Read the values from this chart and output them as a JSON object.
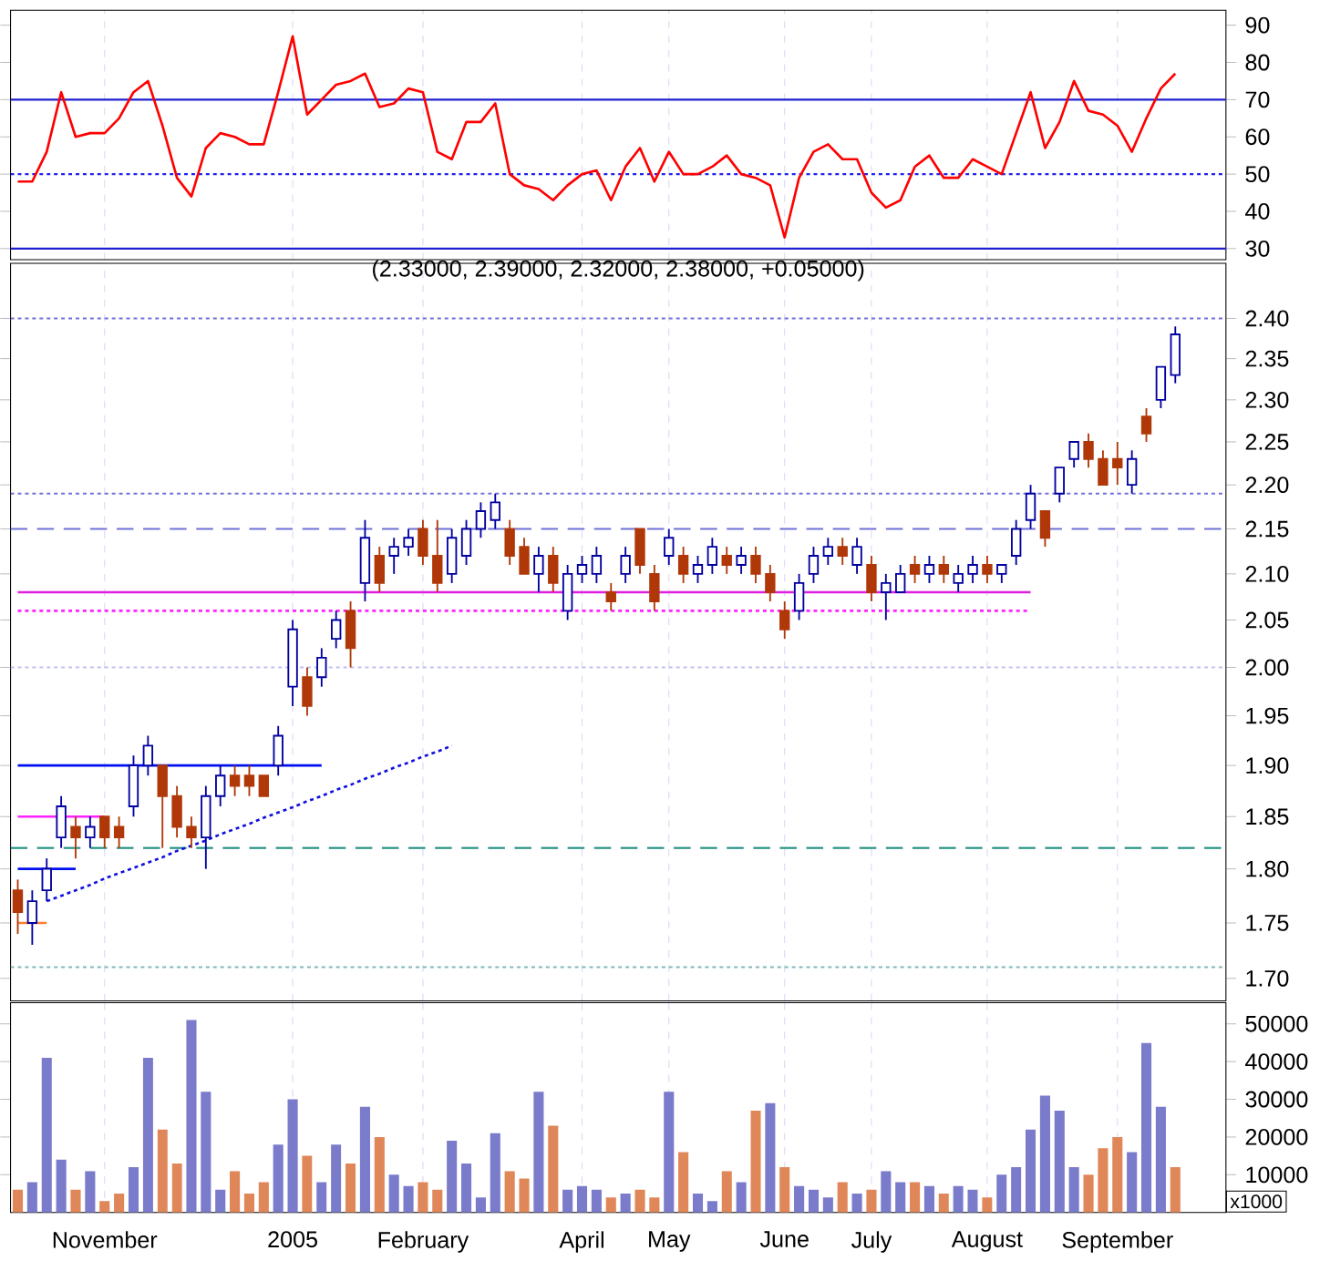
{
  "chart_data": [
    {
      "type": "line",
      "categories": [
        null,
        null,
        null,
        null,
        null,
        null,
        null,
        null,
        null,
        null,
        null,
        null,
        null,
        null,
        null,
        null,
        null,
        null,
        null,
        null,
        null,
        null,
        null,
        null,
        null,
        null,
        null,
        null,
        null,
        null,
        null,
        null,
        null,
        null,
        null,
        null,
        null,
        null,
        null,
        null,
        null,
        null,
        null,
        null,
        null,
        null,
        null,
        null,
        null,
        null,
        null,
        null,
        null,
        null,
        null,
        null,
        null,
        null,
        null,
        null,
        null,
        null,
        null,
        null,
        null,
        null,
        null,
        null,
        null,
        null,
        null,
        null,
        null,
        null,
        null,
        null,
        null,
        null,
        null,
        null,
        null
      ],
      "series": [
        {
          "color": "#ff0000",
          "values": [
            48,
            48,
            56,
            72,
            60,
            61,
            61,
            65,
            72,
            75,
            63,
            49,
            44,
            57,
            61,
            60,
            58,
            58,
            72,
            87,
            66,
            70,
            74,
            75,
            77,
            68,
            69,
            73,
            72,
            56,
            54,
            64,
            64,
            69,
            50,
            47,
            46,
            43,
            47,
            50,
            51,
            43,
            52,
            57,
            48,
            56,
            50,
            50,
            52,
            55,
            50,
            49,
            47,
            33,
            49,
            56,
            58,
            54,
            54,
            45,
            41,
            43,
            52,
            55,
            49,
            49,
            54,
            52,
            50,
            61,
            72,
            57,
            64,
            75,
            67,
            66,
            63,
            56,
            65,
            73,
            77
          ]
        }
      ],
      "ylim": [
        27,
        94
      ],
      "yticks": [
        30,
        40,
        50,
        60,
        70,
        80,
        90
      ],
      "grid": "x",
      "tick_labels": "y",
      "ref_lines": [
        {
          "axis": "y",
          "value": 70,
          "color": "#2020d0",
          "line_style": "solid"
        },
        {
          "axis": "y",
          "value": 50,
          "color": "#2020f0",
          "line_style": "dotted"
        },
        {
          "axis": "y",
          "value": 30,
          "color": "#2020d0",
          "line_style": "solid"
        }
      ]
    },
    {
      "type": "candlestick",
      "title": "(2.33000, 2.39000, 2.32000, 2.38000, +0.05000)",
      "categories": [
        null,
        null,
        null,
        null,
        null,
        null,
        null,
        null,
        null,
        null,
        null,
        null,
        null,
        null,
        null,
        null,
        null,
        null,
        null,
        null,
        null,
        null,
        null,
        null,
        null,
        null,
        null,
        null,
        null,
        null,
        null,
        null,
        null,
        null,
        null,
        null,
        null,
        null,
        null,
        null,
        null,
        null,
        null,
        null,
        null,
        null,
        null,
        null,
        null,
        null,
        null,
        null,
        null,
        null,
        null,
        null,
        null,
        null,
        null,
        null,
        null,
        null,
        null,
        null,
        null,
        null,
        null,
        null,
        null,
        null,
        null,
        null,
        null,
        null,
        null,
        null,
        null,
        null,
        null,
        null,
        null
      ],
      "ohlc": [
        [
          1.78,
          1.79,
          1.74,
          1.76
        ],
        [
          1.75,
          1.78,
          1.73,
          1.77
        ],
        [
          1.78,
          1.81,
          1.77,
          1.8
        ],
        [
          1.83,
          1.87,
          1.82,
          1.86
        ],
        [
          1.84,
          1.85,
          1.81,
          1.83
        ],
        [
          1.83,
          1.85,
          1.82,
          1.84
        ],
        [
          1.85,
          1.85,
          1.82,
          1.83
        ],
        [
          1.84,
          1.85,
          1.82,
          1.83
        ],
        [
          1.86,
          1.91,
          1.85,
          1.9
        ],
        [
          1.9,
          1.93,
          1.89,
          1.92
        ],
        [
          1.9,
          1.9,
          1.82,
          1.87
        ],
        [
          1.87,
          1.88,
          1.83,
          1.84
        ],
        [
          1.84,
          1.85,
          1.82,
          1.83
        ],
        [
          1.83,
          1.88,
          1.8,
          1.87
        ],
        [
          1.87,
          1.9,
          1.86,
          1.89
        ],
        [
          1.89,
          1.9,
          1.87,
          1.88
        ],
        [
          1.89,
          1.9,
          1.87,
          1.88
        ],
        [
          1.89,
          1.89,
          1.87,
          1.87
        ],
        [
          1.9,
          1.94,
          1.89,
          1.93
        ],
        [
          1.98,
          2.05,
          1.96,
          2.04
        ],
        [
          1.99,
          2.0,
          1.95,
          1.96
        ],
        [
          1.99,
          2.02,
          1.98,
          2.01
        ],
        [
          2.03,
          2.06,
          2.02,
          2.05
        ],
        [
          2.06,
          2.07,
          2.0,
          2.02
        ],
        [
          2.09,
          2.16,
          2.07,
          2.14
        ],
        [
          2.12,
          2.13,
          2.08,
          2.09
        ],
        [
          2.12,
          2.14,
          2.1,
          2.13
        ],
        [
          2.13,
          2.15,
          2.12,
          2.14
        ],
        [
          2.15,
          2.16,
          2.11,
          2.12
        ],
        [
          2.12,
          2.16,
          2.08,
          2.09
        ],
        [
          2.1,
          2.15,
          2.09,
          2.14
        ],
        [
          2.12,
          2.16,
          2.11,
          2.15
        ],
        [
          2.15,
          2.18,
          2.14,
          2.17
        ],
        [
          2.16,
          2.19,
          2.15,
          2.18
        ],
        [
          2.15,
          2.16,
          2.11,
          2.12
        ],
        [
          2.13,
          2.14,
          2.1,
          2.1
        ],
        [
          2.1,
          2.13,
          2.08,
          2.12
        ],
        [
          2.12,
          2.13,
          2.08,
          2.09
        ],
        [
          2.06,
          2.11,
          2.05,
          2.1
        ],
        [
          2.1,
          2.12,
          2.09,
          2.11
        ],
        [
          2.1,
          2.13,
          2.09,
          2.12
        ],
        [
          2.08,
          2.09,
          2.06,
          2.07
        ],
        [
          2.1,
          2.13,
          2.09,
          2.12
        ],
        [
          2.15,
          2.15,
          2.1,
          2.11
        ],
        [
          2.1,
          2.11,
          2.06,
          2.07
        ],
        [
          2.12,
          2.15,
          2.11,
          2.14
        ],
        [
          2.12,
          2.13,
          2.09,
          2.1
        ],
        [
          2.1,
          2.12,
          2.09,
          2.11
        ],
        [
          2.11,
          2.14,
          2.1,
          2.13
        ],
        [
          2.12,
          2.13,
          2.1,
          2.11
        ],
        [
          2.11,
          2.13,
          2.1,
          2.12
        ],
        [
          2.12,
          2.13,
          2.09,
          2.1
        ],
        [
          2.1,
          2.11,
          2.07,
          2.08
        ],
        [
          2.06,
          2.07,
          2.03,
          2.04
        ],
        [
          2.06,
          2.1,
          2.05,
          2.09
        ],
        [
          2.1,
          2.13,
          2.09,
          2.12
        ],
        [
          2.12,
          2.14,
          2.11,
          2.13
        ],
        [
          2.13,
          2.14,
          2.11,
          2.12
        ],
        [
          2.11,
          2.14,
          2.1,
          2.13
        ],
        [
          2.11,
          2.12,
          2.07,
          2.08
        ],
        [
          2.08,
          2.1,
          2.05,
          2.09
        ],
        [
          2.08,
          2.11,
          2.08,
          2.1
        ],
        [
          2.11,
          2.12,
          2.09,
          2.1
        ],
        [
          2.1,
          2.12,
          2.09,
          2.11
        ],
        [
          2.11,
          2.12,
          2.09,
          2.1
        ],
        [
          2.09,
          2.11,
          2.08,
          2.1
        ],
        [
          2.1,
          2.12,
          2.09,
          2.11
        ],
        [
          2.11,
          2.12,
          2.09,
          2.1
        ],
        [
          2.1,
          2.11,
          2.09,
          2.11
        ],
        [
          2.12,
          2.16,
          2.11,
          2.15
        ],
        [
          2.16,
          2.2,
          2.15,
          2.19
        ],
        [
          2.17,
          2.17,
          2.13,
          2.14
        ],
        [
          2.19,
          2.22,
          2.18,
          2.22
        ],
        [
          2.23,
          2.25,
          2.22,
          2.25
        ],
        [
          2.25,
          2.26,
          2.22,
          2.23
        ],
        [
          2.23,
          2.24,
          2.2,
          2.2
        ],
        [
          2.23,
          2.25,
          2.2,
          2.22
        ],
        [
          2.2,
          2.24,
          2.19,
          2.23
        ],
        [
          2.28,
          2.29,
          2.25,
          2.26
        ],
        [
          2.3,
          2.34,
          2.29,
          2.34
        ],
        [
          2.33,
          2.39,
          2.32,
          2.38
        ]
      ],
      "series": [
        {
          "type": "line",
          "values": [
            2.08,
            2.08,
            2.08,
            2.08,
            2.08,
            2.08,
            2.08,
            2.08,
            2.08,
            2.08,
            2.08,
            2.08,
            2.08,
            2.08,
            2.08,
            2.08,
            2.08,
            2.08,
            2.08,
            2.08,
            2.08,
            2.08,
            2.08,
            2.08,
            2.08,
            2.08,
            2.08,
            2.08,
            2.08,
            2.08,
            2.08,
            2.08,
            2.08,
            2.08,
            2.08,
            2.08,
            2.08,
            2.08,
            2.08,
            2.08,
            2.08,
            2.08,
            2.08,
            2.08,
            2.08,
            2.08,
            2.08,
            2.08,
            2.08,
            2.08,
            2.08,
            2.08,
            2.08,
            2.08,
            2.08,
            2.08,
            2.08,
            2.08,
            2.08,
            2.08,
            2.08,
            2.08,
            2.08,
            2.08,
            2.08,
            2.08,
            2.08,
            2.08,
            2.08,
            2.08,
            2.08,
            null,
            null,
            null,
            null,
            null,
            null,
            null,
            null,
            null,
            null
          ],
          "color": "#e020e0",
          "line_style": "solid"
        },
        {
          "type": "line",
          "values": [
            2.06,
            2.06,
            2.06,
            2.06,
            2.06,
            2.06,
            2.06,
            2.06,
            2.06,
            2.06,
            2.06,
            2.06,
            2.06,
            2.06,
            2.06,
            2.06,
            2.06,
            2.06,
            2.06,
            2.06,
            2.06,
            2.06,
            2.06,
            2.06,
            2.06,
            2.06,
            2.06,
            2.06,
            2.06,
            2.06,
            2.06,
            2.06,
            2.06,
            2.06,
            2.06,
            2.06,
            2.06,
            2.06,
            2.06,
            2.06,
            2.06,
            2.06,
            2.06,
            2.06,
            2.06,
            2.06,
            2.06,
            2.06,
            2.06,
            2.06,
            2.06,
            2.06,
            2.06,
            2.06,
            2.06,
            2.06,
            2.06,
            2.06,
            2.06,
            2.06,
            2.06,
            2.06,
            2.06,
            2.06,
            2.06,
            2.06,
            2.06,
            2.06,
            2.06,
            2.06,
            2.06,
            null,
            null,
            null,
            null,
            null,
            null,
            null,
            null,
            null,
            null
          ],
          "color": "#ff20ff",
          "line_style": "dotted"
        },
        {
          "type": "line",
          "values": [
            1.9,
            1.9,
            1.9,
            1.9,
            1.9,
            1.9,
            1.9,
            1.9,
            1.9,
            1.9,
            1.9,
            1.9,
            1.9,
            1.9,
            1.9,
            1.9,
            1.9,
            1.9,
            1.9,
            1.9,
            1.9,
            1.9,
            null,
            null,
            null,
            null,
            null,
            null,
            null,
            null,
            null,
            null,
            null,
            null,
            null,
            null,
            null,
            null,
            null,
            null,
            null,
            null,
            null,
            null,
            null,
            null,
            null,
            null,
            null,
            null,
            null,
            null,
            null,
            null,
            null,
            null,
            null,
            null,
            null,
            null,
            null,
            null,
            null,
            null,
            null,
            null,
            null,
            null,
            null,
            null,
            null,
            null,
            null,
            null,
            null,
            null,
            null,
            null,
            null,
            null,
            null
          ],
          "color": "#0010f0",
          "line_style": "solid"
        },
        {
          "type": "line",
          "values": [
            1.85,
            1.85,
            1.85,
            1.85,
            1.85,
            1.85,
            1.85,
            null,
            null,
            null,
            null,
            null,
            null,
            null,
            null,
            null,
            null,
            null,
            null,
            null,
            null,
            null,
            null,
            null,
            null,
            null,
            null,
            null,
            null,
            null,
            null,
            null,
            null,
            null,
            null,
            null,
            null,
            null,
            null,
            null,
            null,
            null,
            null,
            null,
            null,
            null,
            null,
            null,
            null,
            null,
            null,
            null,
            null,
            null,
            null,
            null,
            null,
            null,
            null,
            null,
            null,
            null,
            null,
            null,
            null,
            null,
            null,
            null,
            null,
            null,
            null,
            null,
            null,
            null,
            null,
            null,
            null,
            null,
            null,
            null,
            null
          ],
          "color": "#ff20ff",
          "line_style": "solid"
        },
        {
          "type": "line",
          "values": [
            1.8,
            1.8,
            1.8,
            1.8,
            1.8,
            null,
            null,
            null,
            null,
            null,
            null,
            null,
            null,
            null,
            null,
            null,
            null,
            null,
            null,
            null,
            null,
            null,
            null,
            null,
            null,
            null,
            null,
            null,
            null,
            null,
            null,
            null,
            null,
            null,
            null,
            null,
            null,
            null,
            null,
            null,
            null,
            null,
            null,
            null,
            null,
            null,
            null,
            null,
            null,
            null,
            null,
            null,
            null,
            null,
            null,
            null,
            null,
            null,
            null,
            null,
            null,
            null,
            null,
            null,
            null,
            null,
            null,
            null,
            null,
            null,
            null,
            null,
            null,
            null,
            null,
            null,
            null,
            null,
            null,
            null,
            null
          ],
          "color": "#0010f0",
          "line_style": "solid"
        },
        {
          "type": "line",
          "values": [
            1.75,
            1.75,
            1.75,
            null,
            null,
            null,
            null,
            null,
            null,
            null,
            null,
            null,
            null,
            null,
            null,
            null,
            null,
            null,
            null,
            null,
            null,
            null,
            null,
            null,
            null,
            null,
            null,
            null,
            null,
            null,
            null,
            null,
            null,
            null,
            null,
            null,
            null,
            null,
            null,
            null,
            null,
            null,
            null,
            null,
            null,
            null,
            null,
            null,
            null,
            null,
            null,
            null,
            null,
            null,
            null,
            null,
            null,
            null,
            null,
            null,
            null,
            null,
            null,
            null,
            null,
            null,
            null,
            null,
            null,
            null,
            null,
            null,
            null,
            null,
            null,
            null,
            null,
            null,
            null,
            null,
            null
          ],
          "color": "#ff8030",
          "line_style": "solid"
        },
        {
          "type": "line",
          "values": [
            null,
            null,
            1.77,
            1.775,
            1.78,
            1.785,
            1.791,
            1.796,
            1.801,
            1.806,
            1.811,
            1.817,
            1.822,
            1.827,
            1.833,
            1.838,
            1.843,
            1.849,
            1.854,
            1.859,
            1.865,
            1.87,
            1.876,
            1.881,
            1.887,
            1.892,
            1.898,
            1.903,
            1.909,
            1.914,
            1.92,
            null,
            null,
            null,
            null,
            null,
            null,
            null,
            null,
            null,
            null,
            null,
            null,
            null,
            null,
            null,
            null,
            null,
            null,
            null,
            null,
            null,
            null,
            null,
            null,
            null,
            null,
            null,
            null,
            null,
            null,
            null,
            null,
            null,
            null,
            null,
            null,
            null,
            null,
            null,
            null,
            null,
            null,
            null,
            null,
            null,
            null,
            null,
            null,
            null,
            null
          ],
          "color": "#1010e0",
          "line_style": "dotted"
        }
      ],
      "log": "y",
      "ylim": [
        1.68,
        2.47
      ],
      "yticks": [
        {
          "value": 1.7,
          "label": "1.70"
        },
        {
          "value": 1.75,
          "label": "1.75"
        },
        {
          "value": 1.8,
          "label": "1.80"
        },
        {
          "value": 1.85,
          "label": "1.85"
        },
        {
          "value": 1.9,
          "label": "1.90"
        },
        {
          "value": 1.95,
          "label": "1.95"
        },
        {
          "value": 2.0,
          "label": "2.00"
        },
        {
          "value": 2.05,
          "label": "2.05"
        },
        {
          "value": 2.1,
          "label": "2.10"
        },
        {
          "value": 2.15,
          "label": "2.15"
        },
        {
          "value": 2.2,
          "label": "2.20"
        },
        {
          "value": 2.25,
          "label": "2.25"
        },
        {
          "value": 2.3,
          "label": "2.30"
        },
        {
          "value": 2.35,
          "label": "2.35"
        },
        {
          "value": 2.4,
          "label": "2.40"
        }
      ],
      "grid": "x",
      "tick_labels": "y",
      "ref_lines": [
        {
          "axis": "y",
          "value": 2.4,
          "color": "#7070d8",
          "line_style": "dotted"
        },
        {
          "axis": "y",
          "value": 2.19,
          "color": "#7070d8",
          "line_style": "dotted"
        },
        {
          "axis": "y",
          "value": 2.15,
          "color": "#7070d8",
          "line_style": "dashed"
        },
        {
          "axis": "y",
          "value": 2.0,
          "color": "#c0c0f0",
          "line_style": "dotted"
        },
        {
          "axis": "y",
          "value": 1.82,
          "color": "#209080",
          "line_style": "dashed"
        },
        {
          "axis": "y",
          "value": 1.71,
          "color": "#80b8b8",
          "line_style": "dotted"
        }
      ]
    },
    {
      "type": "bar",
      "categories": [
        null,
        null,
        null,
        null,
        null,
        null,
        "November",
        null,
        null,
        null,
        null,
        null,
        null,
        null,
        null,
        null,
        null,
        null,
        null,
        "2005",
        null,
        null,
        null,
        null,
        null,
        null,
        null,
        null,
        "February",
        null,
        null,
        null,
        null,
        null,
        null,
        null,
        null,
        null,
        null,
        "April",
        null,
        null,
        null,
        null,
        null,
        "May",
        null,
        null,
        null,
        null,
        null,
        null,
        null,
        "June",
        null,
        null,
        null,
        null,
        null,
        "July",
        null,
        null,
        null,
        null,
        null,
        null,
        null,
        "August",
        null,
        null,
        null,
        null,
        null,
        null,
        null,
        null,
        "September",
        null,
        null,
        null,
        null
      ],
      "values": [
        6000,
        8000,
        41000,
        14000,
        6000,
        11000,
        3000,
        5000,
        12000,
        41000,
        22000,
        13000,
        51000,
        32000,
        6000,
        11000,
        5000,
        8000,
        18000,
        30000,
        15000,
        8000,
        18000,
        13000,
        28000,
        20000,
        10000,
        7000,
        8000,
        6000,
        19000,
        13000,
        4000,
        21000,
        11000,
        9000,
        32000,
        23000,
        6000,
        7000,
        6000,
        4000,
        5000,
        6000,
        4000,
        32000,
        16000,
        5000,
        3000,
        11000,
        8000,
        27000,
        29000,
        12000,
        7000,
        6000,
        4000,
        8000,
        5000,
        6000,
        11000,
        8000,
        8000,
        7000,
        5000,
        7000,
        6000,
        4000,
        10000,
        12000,
        22000,
        31000,
        27000,
        12000,
        10000,
        17000,
        20000,
        16000,
        45000,
        28000,
        12000
      ],
      "colors": [
        "#e0875a",
        "#7b7bcc",
        "#7b7bcc",
        "#7b7bcc",
        "#e0875a",
        "#7b7bcc",
        "#e0875a",
        "#e0875a",
        "#7b7bcc",
        "#7b7bcc",
        "#e0875a",
        "#e0875a",
        "#7b7bcc",
        "#7b7bcc",
        "#7b7bcc",
        "#e0875a",
        "#e0875a",
        "#e0875a",
        "#7b7bcc",
        "#7b7bcc",
        "#e0875a",
        "#7b7bcc",
        "#7b7bcc",
        "#e0875a",
        "#7b7bcc",
        "#e0875a",
        "#7b7bcc",
        "#7b7bcc",
        "#e0875a",
        "#e0875a",
        "#7b7bcc",
        "#7b7bcc",
        "#7b7bcc",
        "#7b7bcc",
        "#e0875a",
        "#e0875a",
        "#7b7bcc",
        "#e0875a",
        "#7b7bcc",
        "#7b7bcc",
        "#7b7bcc",
        "#e0875a",
        "#7b7bcc",
        "#e0875a",
        "#e0875a",
        "#7b7bcc",
        "#e0875a",
        "#7b7bcc",
        "#7b7bcc",
        "#e0875a",
        "#7b7bcc",
        "#e0875a",
        "#7b7bcc",
        "#e0875a",
        "#7b7bcc",
        "#7b7bcc",
        "#7b7bcc",
        "#e0875a",
        "#7b7bcc",
        "#e0875a",
        "#7b7bcc",
        "#7b7bcc",
        "#e0875a",
        "#7b7bcc",
        "#e0875a",
        "#7b7bcc",
        "#7b7bcc",
        "#e0875a",
        "#7b7bcc",
        "#7b7bcc",
        "#7b7bcc",
        "#7b7bcc",
        "#7b7bcc",
        "#7b7bcc",
        "#e0875a",
        "#e0875a",
        "#e0875a",
        "#7b7bcc",
        "#7b7bcc",
        "#7b7bcc",
        "#e0875a"
      ],
      "ylim": [
        0,
        55600
      ],
      "yticks": [
        10000,
        20000,
        30000,
        40000,
        50000
      ],
      "grid": "x",
      "annotations": [
        "x1000"
      ]
    }
  ]
}
